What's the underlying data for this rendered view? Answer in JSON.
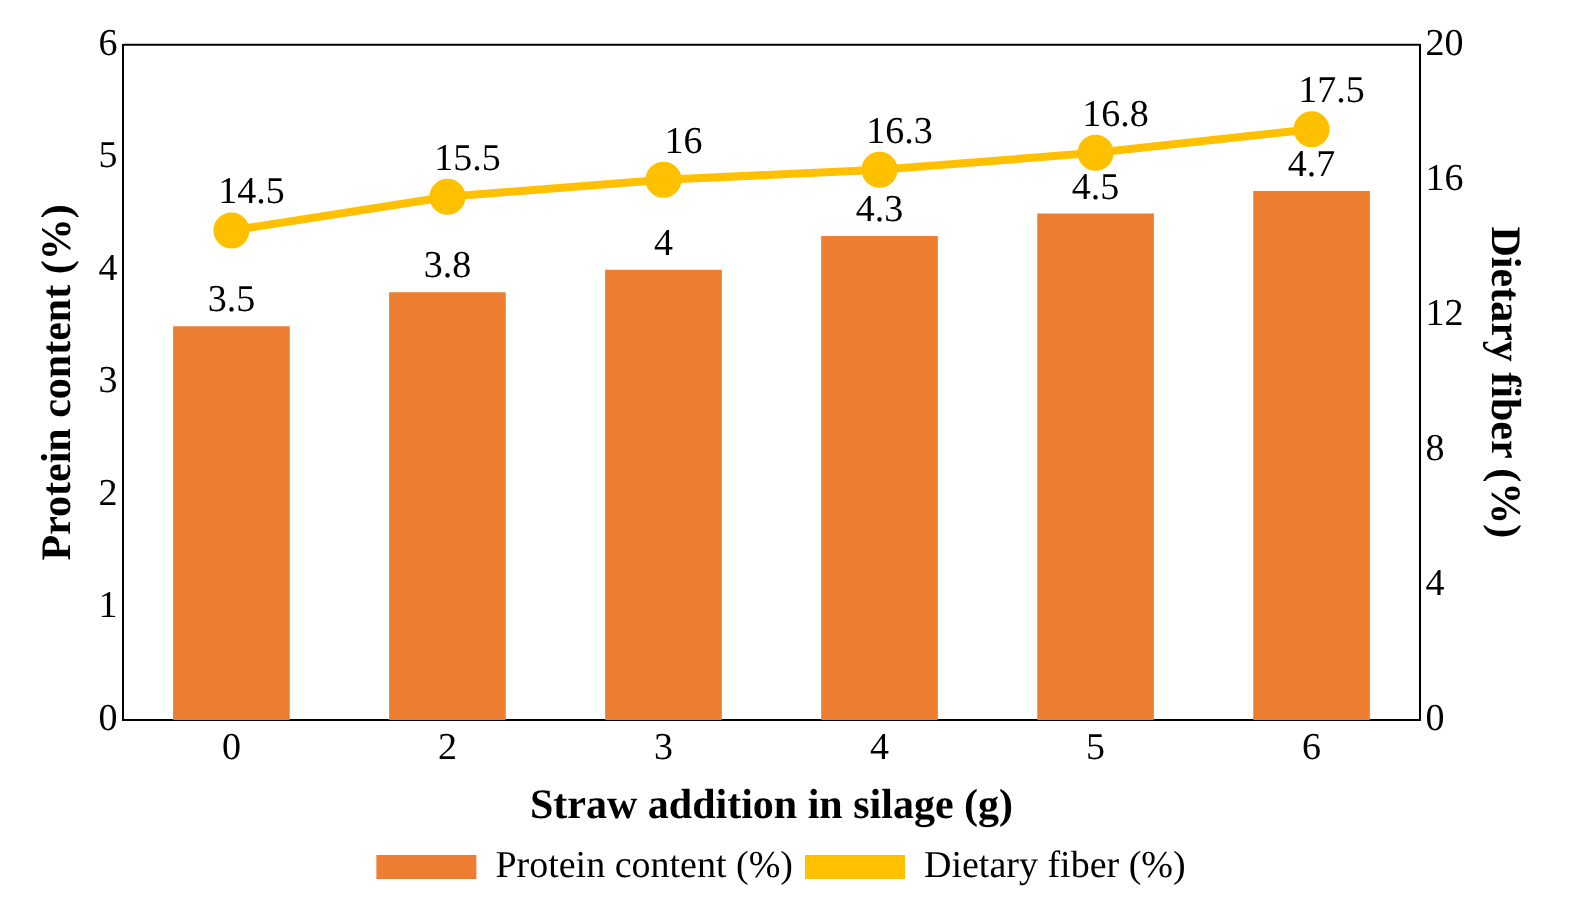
{
  "chart_data": {
    "type": "bar",
    "xlabel": "Straw addition in silage (g)",
    "ylabel": "Protein content (%)",
    "y2label": "Dietary fiber (%)",
    "categories": [
      "0",
      "2",
      "3",
      "4",
      "5",
      "6"
    ],
    "series": [
      {
        "name": "Protein content (%)",
        "color": "#ed7d31",
        "values": [
          3.5,
          3.8,
          4,
          4.3,
          4.5,
          4.7
        ]
      },
      {
        "name": "Dietary fiber (%)",
        "type": "line",
        "axis": "y2",
        "color": "#ffc000",
        "marker": "circle",
        "values": [
          14.5,
          15.5,
          16,
          16.3,
          16.8,
          17.5
        ]
      }
    ],
    "ylim": [
      0,
      6
    ],
    "yticks": [
      0,
      1,
      2,
      3,
      4,
      5,
      6
    ],
    "y2lim": [
      0,
      20
    ],
    "y2ticks": [
      0,
      4,
      8,
      12,
      16,
      20
    ],
    "data_labels": true,
    "legend": "bottom",
    "grid": false
  }
}
